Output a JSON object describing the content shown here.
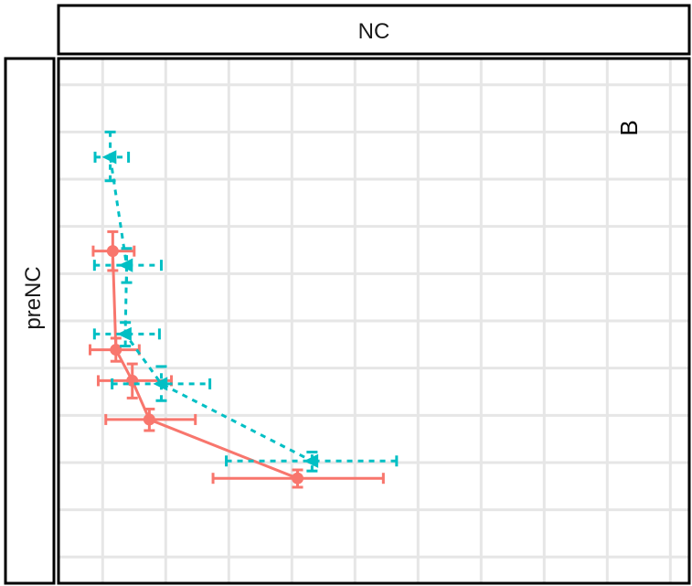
{
  "chart_data": {
    "type": "line",
    "facet_col_label": "NC",
    "facet_row_label": "preNC",
    "panel_tag": "B",
    "grid": true,
    "xlim": [
      0,
      100
    ],
    "ylim": [
      0,
      100
    ],
    "x_gridlines": [
      7,
      17,
      27,
      37,
      47,
      57,
      67,
      77,
      87,
      97
    ],
    "y_gridlines": [
      5,
      14,
      23,
      32,
      41,
      50,
      59,
      68,
      77,
      86,
      95
    ],
    "series": [
      {
        "color": "#F8766D",
        "marker": "circle",
        "line_style": "solid",
        "points": [
          {
            "x": 8.6,
            "y": 63.3,
            "xerr": [
              5.5,
              12.0
            ],
            "yerr": [
              59.6,
              67.0
            ]
          },
          {
            "x": 9.1,
            "y": 44.5,
            "xerr": [
              5.0,
              12.8
            ],
            "yerr": [
              42.3,
              46.7
            ]
          },
          {
            "x": 11.7,
            "y": 38.6,
            "xerr": [
              6.3,
              17.9
            ],
            "yerr": [
              35.3,
              41.8
            ]
          },
          {
            "x": 14.4,
            "y": 31.2,
            "xerr": [
              7.5,
              21.7
            ],
            "yerr": [
              29.1,
              33.2
            ]
          },
          {
            "x": 37.9,
            "y": 20.0,
            "xerr": [
              24.5,
              51.5
            ],
            "yerr": [
              18.3,
              21.6
            ]
          }
        ]
      },
      {
        "color": "#00BFC4",
        "marker": "triangle-left",
        "line_style": "dashed",
        "points": [
          {
            "x": 8.2,
            "y": 81.2,
            "xerr": [
              5.8,
              11.1
            ],
            "yerr": [
              76.7,
              86.0
            ]
          },
          {
            "x": 10.8,
            "y": 60.6,
            "xerr": [
              5.7,
              16.3
            ],
            "yerr": [
              57.3,
              63.8
            ]
          },
          {
            "x": 10.6,
            "y": 47.5,
            "xerr": [
              5.7,
              16.0
            ],
            "yerr": [
              45.2,
              49.7
            ]
          },
          {
            "x": 16.3,
            "y": 38.0,
            "xerr": [
              8.5,
              24.0
            ],
            "yerr": [
              34.8,
              41.3
            ]
          },
          {
            "x": 40.2,
            "y": 23.3,
            "xerr": [
              26.6,
              53.6
            ],
            "yerr": [
              21.4,
              25.0
            ]
          }
        ]
      }
    ]
  }
}
